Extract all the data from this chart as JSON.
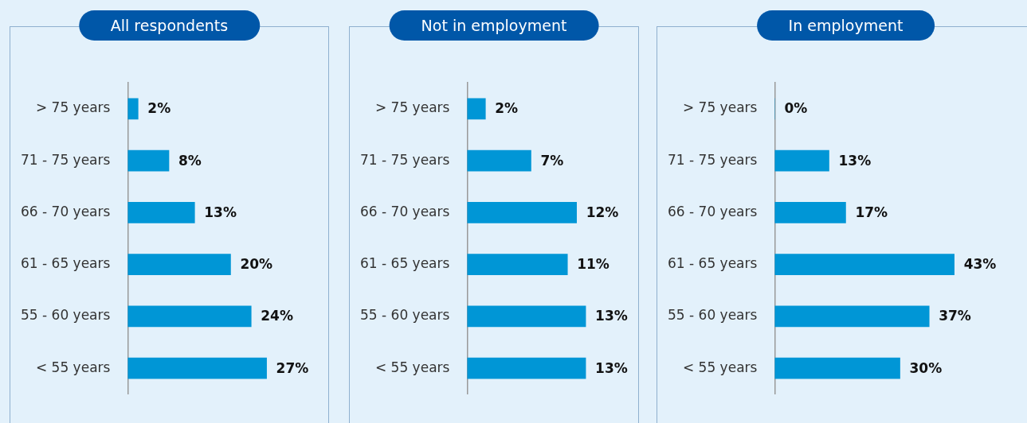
{
  "chart_data": [
    {
      "type": "bar",
      "orientation": "horizontal",
      "title": "All respondents",
      "categories": [
        "> 75 years",
        "71 - 75 years",
        "66 - 70 years",
        "61 - 65 years",
        "55 - 60 years",
        "< 55 years"
      ],
      "values": [
        2,
        8,
        13,
        20,
        24,
        27
      ],
      "value_labels": [
        "2%",
        "8%",
        "13%",
        "20%",
        "24%",
        "27%"
      ],
      "color": "#0096d6",
      "tick_labels": "y",
      "legend": false
    },
    {
      "type": "bar",
      "orientation": "horizontal",
      "title": "Not in employment",
      "categories": [
        "> 75 years",
        "71 - 75 years",
        "66 - 70 years",
        "61 - 65 years",
        "55 - 60 years",
        "< 55 years"
      ],
      "values": [
        2,
        7,
        12,
        11,
        13,
        13
      ],
      "value_labels": [
        "2%",
        "7%",
        "12%",
        "11%",
        "13%",
        "13%"
      ],
      "color": "#0096d6",
      "tick_labels": "y",
      "legend": false
    },
    {
      "type": "bar",
      "orientation": "horizontal",
      "title": "In employment",
      "categories": [
        "> 75 years",
        "71 - 75 years",
        "66 - 70 years",
        "61 - 65 years",
        "55 - 60 years",
        "< 55 years"
      ],
      "values": [
        0,
        13,
        17,
        43,
        37,
        30
      ],
      "value_labels": [
        "0%",
        "13%",
        "17%",
        "43%",
        "37%",
        "30%"
      ],
      "color": "#0096d6",
      "tick_labels": "y",
      "legend": false
    }
  ]
}
